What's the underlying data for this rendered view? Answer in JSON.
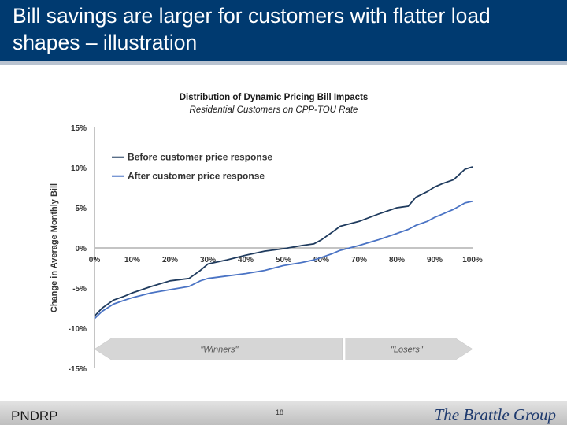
{
  "slide": {
    "title": "Bill savings are larger for customers with flatter load shapes – illustration",
    "footer_left": "PNDRP",
    "page_number": "18",
    "brand": "The Brattle Group"
  },
  "colors": {
    "header_bg": "#003a70",
    "before_series": "#1f3b5e",
    "after_series": "#4a73c4",
    "arrow_fill": "#d6d6d6"
  },
  "chart_data": {
    "type": "line",
    "title": "Distribution of Dynamic Pricing Bill Impacts",
    "subtitle": "Residential Customers on CPP-TOU Rate",
    "ylabel": "Change in Average Monthly Bill",
    "xlabel": "",
    "xlim": [
      0,
      100
    ],
    "ylim": [
      -15,
      15
    ],
    "x_ticks": [
      "0%",
      "10%",
      "20%",
      "30%",
      "40%",
      "50%",
      "60%",
      "70%",
      "80%",
      "90%",
      "100%"
    ],
    "y_ticks": [
      {
        "value": 15,
        "label": "15%"
      },
      {
        "value": 10,
        "label": "10%"
      },
      {
        "value": 5,
        "label": "5%"
      },
      {
        "value": 0,
        "label": "0%"
      },
      {
        "value": -5,
        "label": "-5%"
      },
      {
        "value": -10,
        "label": "-10%"
      },
      {
        "value": -15,
        "label": "-15%"
      }
    ],
    "legend_position": "top-left",
    "grid": false,
    "x": [
      0,
      2,
      5,
      8,
      10,
      15,
      20,
      25,
      28,
      30,
      35,
      40,
      45,
      50,
      55,
      58,
      60,
      63,
      65,
      70,
      75,
      80,
      83,
      85,
      88,
      90,
      92,
      95,
      98,
      100
    ],
    "series": [
      {
        "name": "Before customer price response",
        "values": [
          -8.5,
          -7.5,
          -6.5,
          -6.0,
          -5.6,
          -4.8,
          -4.1,
          -3.8,
          -2.8,
          -2.0,
          -1.5,
          -0.9,
          -0.4,
          -0.1,
          0.3,
          0.5,
          1.0,
          2.0,
          2.7,
          3.3,
          4.2,
          5.0,
          5.2,
          6.3,
          7.0,
          7.6,
          8.0,
          8.5,
          9.8,
          10.1
        ]
      },
      {
        "name": "After customer price response",
        "values": [
          -8.8,
          -7.9,
          -7.0,
          -6.5,
          -6.2,
          -5.6,
          -5.2,
          -4.8,
          -4.1,
          -3.8,
          -3.5,
          -3.2,
          -2.8,
          -2.2,
          -1.8,
          -1.5,
          -1.2,
          -0.7,
          -0.3,
          0.3,
          1.0,
          1.8,
          2.3,
          2.8,
          3.3,
          3.8,
          4.2,
          4.8,
          5.6,
          5.8
        ]
      }
    ],
    "annotations": [
      {
        "text": "\"Winners\"",
        "x_range": [
          0,
          66
        ]
      },
      {
        "text": "\"Losers\"",
        "x_range": [
          66,
          100
        ]
      }
    ]
  }
}
